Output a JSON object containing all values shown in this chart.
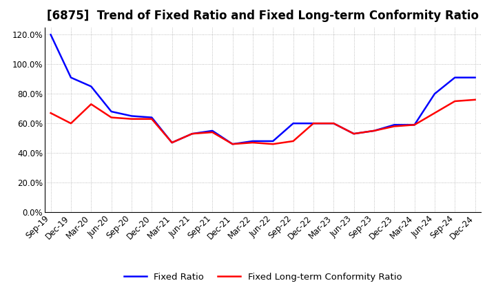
{
  "title": "[6875]  Trend of Fixed Ratio and Fixed Long-term Conformity Ratio",
  "x_labels": [
    "Sep-19",
    "Dec-19",
    "Mar-20",
    "Jun-20",
    "Sep-20",
    "Dec-20",
    "Mar-21",
    "Jun-21",
    "Sep-21",
    "Dec-21",
    "Mar-22",
    "Jun-22",
    "Sep-22",
    "Dec-22",
    "Mar-23",
    "Jun-23",
    "Sep-23",
    "Dec-23",
    "Mar-24",
    "Jun-24",
    "Sep-24",
    "Dec-24"
  ],
  "fixed_ratio": [
    120.0,
    91.0,
    85.0,
    68.0,
    65.0,
    64.0,
    47.0,
    53.0,
    55.0,
    46.0,
    48.0,
    48.0,
    60.0,
    60.0,
    60.0,
    53.0,
    55.0,
    59.0,
    59.0,
    80.0,
    91.0,
    91.0
  ],
  "fixed_lt_ratio": [
    67.0,
    60.0,
    73.0,
    64.0,
    63.0,
    63.0,
    47.0,
    53.0,
    54.0,
    46.0,
    47.0,
    46.0,
    48.0,
    60.0,
    60.0,
    53.0,
    55.0,
    58.0,
    59.0,
    67.0,
    75.0,
    76.0
  ],
  "fixed_ratio_color": "#0000FF",
  "fixed_lt_ratio_color": "#FF0000",
  "ylim": [
    0.0,
    125.0
  ],
  "yticks": [
    0.0,
    20.0,
    40.0,
    60.0,
    80.0,
    100.0,
    120.0
  ],
  "background_color": "#FFFFFF",
  "grid_color": "#AAAAAA",
  "legend_fixed": "Fixed Ratio",
  "legend_lt": "Fixed Long-term Conformity Ratio",
  "title_fontsize": 12,
  "tick_fontsize": 8.5,
  "legend_fontsize": 9.5
}
